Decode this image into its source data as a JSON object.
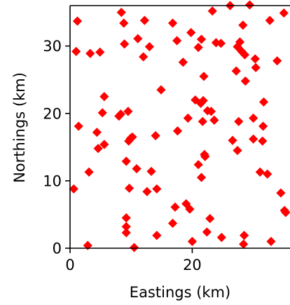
{
  "chart_data": {
    "type": "scatter",
    "title": "",
    "xlabel": "Eastings (km)",
    "ylabel": "Northings (km)",
    "xlim": [
      0,
      36
    ],
    "ylim": [
      0,
      36
    ],
    "x_ticks": [
      0,
      20
    ],
    "x_tick_labels": [
      "0",
      "20"
    ],
    "y_ticks": [
      0,
      10,
      20,
      30
    ],
    "y_tick_labels": [
      "0",
      "10",
      "20",
      "30"
    ],
    "grid": false,
    "legend": false,
    "marker": "diamond",
    "marker_color": "#ff0000",
    "series": [
      {
        "points": [
          [
            1.2,
            33.7
          ],
          [
            1.0,
            29.2
          ],
          [
            3.3,
            28.9
          ],
          [
            4.9,
            29.1
          ],
          [
            5.6,
            22.5
          ],
          [
            1.4,
            18.1
          ],
          [
            5.3,
            20.1
          ],
          [
            4.4,
            17.2
          ],
          [
            4.6,
            14.8
          ],
          [
            5.6,
            15.4
          ],
          [
            3.1,
            11.3
          ],
          [
            0.6,
            8.8
          ],
          [
            2.9,
            0.4
          ],
          [
            8.4,
            35.0
          ],
          [
            8.8,
            33.4
          ],
          [
            8.9,
            30.3
          ],
          [
            11.1,
            31.1
          ],
          [
            12.0,
            28.4
          ],
          [
            12.2,
            33.8
          ],
          [
            13.0,
            29.9
          ],
          [
            8.0,
            19.6
          ],
          [
            8.3,
            19.9
          ],
          [
            9.5,
            20.3
          ],
          [
            9.6,
            15.9
          ],
          [
            10.2,
            16.5
          ],
          [
            9.9,
            16.3
          ],
          [
            9.2,
            12.9
          ],
          [
            10.9,
            11.8
          ],
          [
            9.7,
            8.9
          ],
          [
            9.2,
            4.5
          ],
          [
            9.2,
            3.2
          ],
          [
            9.2,
            2.3
          ],
          [
            10.5,
            0.1
          ],
          [
            13.3,
            11.4
          ],
          [
            12.6,
            8.4
          ],
          [
            14.2,
            8.8
          ],
          [
            14.0,
            16.7
          ],
          [
            14.9,
            23.5
          ],
          [
            14.2,
            1.9
          ],
          [
            16.8,
            3.7
          ],
          [
            17.2,
            6.1
          ],
          [
            16.8,
            33.4
          ],
          [
            17.5,
            30.8
          ],
          [
            18.5,
            27.6
          ],
          [
            19.3,
            19.3
          ],
          [
            17.6,
            17.4
          ],
          [
            19.0,
            6.6
          ],
          [
            19.6,
            5.8
          ],
          [
            20.0,
            1.0
          ],
          [
            19.8,
            32.0
          ],
          [
            21.0,
            29.8
          ],
          [
            21.5,
            31.0
          ],
          [
            21.9,
            25.5
          ],
          [
            20.5,
            22.0
          ],
          [
            21.4,
            21.5
          ],
          [
            21.8,
            21.9
          ],
          [
            22.5,
            20.4
          ],
          [
            23.1,
            20.3
          ],
          [
            23.6,
            19.0
          ],
          [
            21.7,
            18.8
          ],
          [
            22.0,
            13.9
          ],
          [
            22.1,
            13.6
          ],
          [
            21.0,
            12.4
          ],
          [
            21.5,
            10.5
          ],
          [
            22.4,
            2.4
          ],
          [
            22.9,
            4.4
          ],
          [
            23.3,
            35.2
          ],
          [
            23.9,
            30.5
          ],
          [
            24.7,
            30.4
          ],
          [
            24.8,
            1.6
          ],
          [
            26.2,
            36.0
          ],
          [
            27.4,
            29.9
          ],
          [
            27.8,
            30.6
          ],
          [
            28.1,
            29.2
          ],
          [
            28.3,
            33.1
          ],
          [
            28.6,
            28.7
          ],
          [
            27.2,
            26.3
          ],
          [
            28.7,
            24.8
          ],
          [
            27.6,
            18.8
          ],
          [
            26.6,
            16.0
          ],
          [
            27.4,
            14.5
          ],
          [
            28.5,
            1.9
          ],
          [
            28.4,
            0.6
          ],
          [
            29.4,
            36.1
          ],
          [
            30.3,
            28.1
          ],
          [
            30.4,
            26.8
          ],
          [
            30.0,
            19.3
          ],
          [
            30.0,
            16.2
          ],
          [
            31.7,
            21.7
          ],
          [
            31.6,
            18.1
          ],
          [
            31.5,
            15.9
          ],
          [
            31.1,
            11.3
          ],
          [
            32.3,
            11.0
          ],
          [
            32.7,
            33.8
          ],
          [
            33.9,
            27.8
          ],
          [
            32.9,
            1.0
          ],
          [
            35.0,
            34.9
          ],
          [
            34.5,
            8.2
          ],
          [
            35.1,
            5.6
          ],
          [
            35.3,
            5.3
          ]
        ]
      }
    ]
  }
}
